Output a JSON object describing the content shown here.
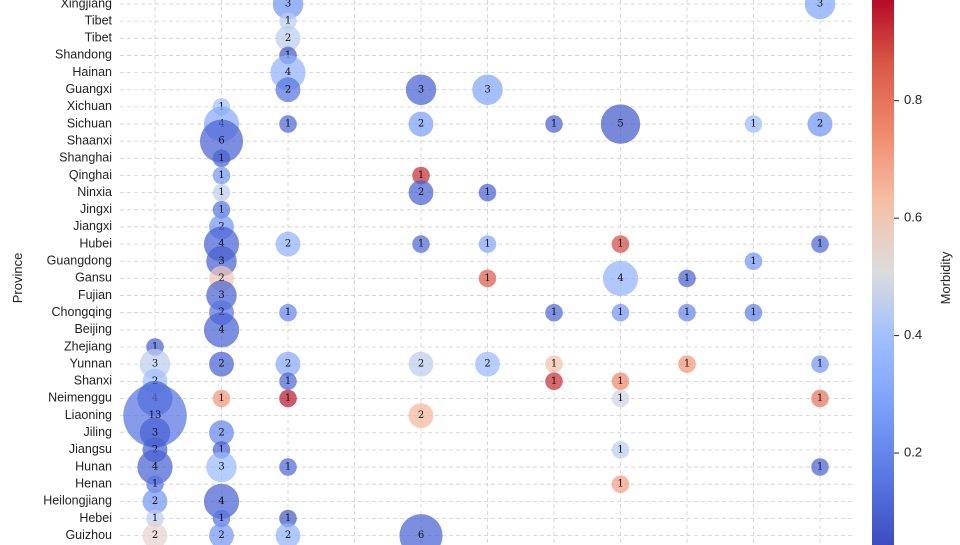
{
  "chart_data": {
    "type": "scatter",
    "subtype": "bubble",
    "ylabel": "Province",
    "colorbar_label": "Morbidity",
    "colorbar_ticks": [
      0.2,
      0.4,
      0.6,
      0.8
    ],
    "colorbar_range": [
      0.04,
      0.98
    ],
    "colormap": "coolwarm",
    "grid": true,
    "provinces": [
      "Xingjiang",
      "Tibet",
      "Tibet",
      "Shandong",
      "Hainan",
      "Guangxi",
      "Xichuan",
      "Sichuan",
      "Shaanxi",
      "Shanghai",
      "Qinghai",
      "Ninxia",
      "Jingxi",
      "Jiangxi",
      "Hubei",
      "Guangdong",
      "Gansu",
      "Fujian",
      "Chongqing",
      "Beijing",
      "Zhejiang",
      "Yunnan",
      "Shanxi",
      "Neimenggu",
      "Liaoning",
      "Jiling",
      "Jiangsu",
      "Hunan",
      "Henan",
      "Heilongjiang",
      "Hebei",
      "Guizhou"
    ],
    "x_categories": 11,
    "points": [
      {
        "x": 3,
        "y": "Xingjiang",
        "count": 3,
        "morbidity": 0.25
      },
      {
        "x": 11,
        "y": "Xingjiang",
        "count": 3,
        "morbidity": 0.3
      },
      {
        "x": 3,
        "y": "Tibet",
        "row": 1,
        "count": 1,
        "morbidity": 0.45
      },
      {
        "x": 3,
        "y": "Tibet",
        "row": 2,
        "count": 2,
        "morbidity": 0.45
      },
      {
        "x": 3,
        "y": "Shandong",
        "count": 1,
        "morbidity": 0.08
      },
      {
        "x": 3,
        "y": "Hainan",
        "count": 4,
        "morbidity": 0.35
      },
      {
        "x": 3,
        "y": "Guangxi",
        "count": 2,
        "morbidity": 0.15
      },
      {
        "x": 5,
        "y": "Guangxi",
        "count": 3,
        "morbidity": 0.1
      },
      {
        "x": 6,
        "y": "Guangxi",
        "count": 3,
        "morbidity": 0.3
      },
      {
        "x": 2,
        "y": "Xichuan",
        "count": 1,
        "morbidity": 0.4
      },
      {
        "x": 2,
        "y": "Sichuan",
        "count": 4,
        "morbidity": 0.32
      },
      {
        "x": 3,
        "y": "Sichuan",
        "count": 1,
        "morbidity": 0.12
      },
      {
        "x": 5,
        "y": "Sichuan",
        "count": 2,
        "morbidity": 0.28
      },
      {
        "x": 7,
        "y": "Sichuan",
        "count": 1,
        "morbidity": 0.1
      },
      {
        "x": 8,
        "y": "Sichuan",
        "count": 5,
        "morbidity": 0.08
      },
      {
        "x": 10,
        "y": "Sichuan",
        "count": 1,
        "morbidity": 0.38
      },
      {
        "x": 11,
        "y": "Sichuan",
        "count": 2,
        "morbidity": 0.25
      },
      {
        "x": 2,
        "y": "Shaanxi",
        "count": 6,
        "morbidity": 0.1
      },
      {
        "x": 2,
        "y": "Shanghai",
        "count": 1,
        "morbidity": 0.1
      },
      {
        "x": 2,
        "y": "Qinghai",
        "count": 1,
        "morbidity": 0.25
      },
      {
        "x": 5,
        "y": "Qinghai",
        "count": 1,
        "morbidity": 0.92
      },
      {
        "x": 2,
        "y": "Ninxia",
        "count": 1,
        "morbidity": 0.45
      },
      {
        "x": 5,
        "y": "Ninxia",
        "count": 2,
        "morbidity": 0.1
      },
      {
        "x": 6,
        "y": "Ninxia",
        "count": 1,
        "morbidity": 0.1
      },
      {
        "x": 2,
        "y": "Jingxi",
        "count": 1,
        "morbidity": 0.15
      },
      {
        "x": 2,
        "y": "Jiangxi",
        "count": 2,
        "morbidity": 0.25
      },
      {
        "x": 2,
        "y": "Hubei",
        "count": 4,
        "morbidity": 0.1
      },
      {
        "x": 3,
        "y": "Hubei",
        "count": 2,
        "morbidity": 0.35
      },
      {
        "x": 5,
        "y": "Hubei",
        "count": 1,
        "morbidity": 0.12
      },
      {
        "x": 6,
        "y": "Hubei",
        "count": 1,
        "morbidity": 0.3
      },
      {
        "x": 8,
        "y": "Hubei",
        "count": 1,
        "morbidity": 0.88
      },
      {
        "x": 11,
        "y": "Hubei",
        "count": 1,
        "morbidity": 0.12
      },
      {
        "x": 2,
        "y": "Guangdong",
        "count": 3,
        "morbidity": 0.1
      },
      {
        "x": 10,
        "y": "Guangdong",
        "count": 1,
        "morbidity": 0.25
      },
      {
        "x": 2,
        "y": "Gansu",
        "count": 2,
        "morbidity": 0.6
      },
      {
        "x": 6,
        "y": "Gansu",
        "count": 1,
        "morbidity": 0.85
      },
      {
        "x": 8,
        "y": "Gansu",
        "count": 4,
        "morbidity": 0.35
      },
      {
        "x": 9,
        "y": "Gansu",
        "count": 1,
        "morbidity": 0.1
      },
      {
        "x": 2,
        "y": "Fujian",
        "count": 3,
        "morbidity": 0.1
      },
      {
        "x": 2,
        "y": "Chongqing",
        "count": 2,
        "morbidity": 0.15
      },
      {
        "x": 3,
        "y": "Chongqing",
        "count": 1,
        "morbidity": 0.2
      },
      {
        "x": 7,
        "y": "Chongqing",
        "count": 1,
        "morbidity": 0.12
      },
      {
        "x": 8,
        "y": "Chongqing",
        "count": 1,
        "morbidity": 0.25
      },
      {
        "x": 9,
        "y": "Chongqing",
        "count": 1,
        "morbidity": 0.2
      },
      {
        "x": 10,
        "y": "Chongqing",
        "count": 1,
        "morbidity": 0.18
      },
      {
        "x": 2,
        "y": "Beijing",
        "count": 4,
        "morbidity": 0.1
      },
      {
        "x": 1,
        "y": "Zhejiang",
        "count": 1,
        "morbidity": 0.1
      },
      {
        "x": 1,
        "y": "Yunnan",
        "count": 3,
        "morbidity": 0.45
      },
      {
        "x": 2,
        "y": "Yunnan",
        "count": 2,
        "morbidity": 0.1
      },
      {
        "x": 3,
        "y": "Yunnan",
        "count": 2,
        "morbidity": 0.32
      },
      {
        "x": 5,
        "y": "Yunnan",
        "count": 2,
        "morbidity": 0.45
      },
      {
        "x": 6,
        "y": "Yunnan",
        "count": 2,
        "morbidity": 0.38
      },
      {
        "x": 7,
        "y": "Yunnan",
        "count": 1,
        "morbidity": 0.62
      },
      {
        "x": 9,
        "y": "Yunnan",
        "count": 1,
        "morbidity": 0.72
      },
      {
        "x": 11,
        "y": "Yunnan",
        "count": 1,
        "morbidity": 0.25
      },
      {
        "x": 1,
        "y": "Shanxi",
        "count": 2,
        "morbidity": 0.4
      },
      {
        "x": 3,
        "y": "Shanxi",
        "count": 1,
        "morbidity": 0.12
      },
      {
        "x": 7,
        "y": "Shanxi",
        "count": 1,
        "morbidity": 0.92
      },
      {
        "x": 8,
        "y": "Shanxi",
        "count": 1,
        "morbidity": 0.75
      },
      {
        "x": 1,
        "y": "Neimenggu",
        "count": 4,
        "morbidity": 0.1
      },
      {
        "x": 2,
        "y": "Neimenggu",
        "count": 1,
        "morbidity": 0.72
      },
      {
        "x": 3,
        "y": "Neimenggu",
        "count": 1,
        "morbidity": 0.95
      },
      {
        "x": 8,
        "y": "Neimenggu",
        "count": 1,
        "morbidity": 0.48
      },
      {
        "x": 11,
        "y": "Neimenggu",
        "count": 1,
        "morbidity": 0.8
      },
      {
        "x": 1,
        "y": "Liaoning",
        "count": 13,
        "morbidity": 0.15
      },
      {
        "x": 5,
        "y": "Liaoning",
        "count": 2,
        "morbidity": 0.65
      },
      {
        "x": 1,
        "y": "Jiling",
        "count": 3,
        "morbidity": 0.1
      },
      {
        "x": 2,
        "y": "Jiling",
        "count": 2,
        "morbidity": 0.2
      },
      {
        "x": 1,
        "y": "Jiangsu",
        "count": 2,
        "morbidity": 0.1
      },
      {
        "x": 2,
        "y": "Jiangsu",
        "count": 1,
        "morbidity": 0.1
      },
      {
        "x": 8,
        "y": "Jiangsu",
        "count": 1,
        "morbidity": 0.45
      },
      {
        "x": 1,
        "y": "Hunan",
        "count": 4,
        "morbidity": 0.1
      },
      {
        "x": 2,
        "y": "Hunan",
        "count": 3,
        "morbidity": 0.38
      },
      {
        "x": 3,
        "y": "Hunan",
        "count": 1,
        "morbidity": 0.12
      },
      {
        "x": 11,
        "y": "Hunan",
        "count": 1,
        "morbidity": 0.1
      },
      {
        "x": 1,
        "y": "Henan",
        "count": 1,
        "morbidity": 0.15
      },
      {
        "x": 8,
        "y": "Henan",
        "count": 1,
        "morbidity": 0.7
      },
      {
        "x": 1,
        "y": "Heilongjiang",
        "count": 2,
        "morbidity": 0.25
      },
      {
        "x": 2,
        "y": "Heilongjiang",
        "count": 4,
        "morbidity": 0.1
      },
      {
        "x": 1,
        "y": "Hebei",
        "count": 1,
        "morbidity": 0.45
      },
      {
        "x": 2,
        "y": "Hebei",
        "count": 1,
        "morbidity": 0.15
      },
      {
        "x": 3,
        "y": "Hebei",
        "count": 1,
        "morbidity": 0.08
      },
      {
        "x": 1,
        "y": "Guizhou",
        "count": 2,
        "morbidity": 0.55
      },
      {
        "x": 2,
        "y": "Guizhou",
        "count": 2,
        "morbidity": 0.25
      },
      {
        "x": 3,
        "y": "Guizhou",
        "count": 2,
        "morbidity": 0.35
      },
      {
        "x": 5,
        "y": "Guizhou",
        "count": 6,
        "morbidity": 0.1
      }
    ]
  }
}
